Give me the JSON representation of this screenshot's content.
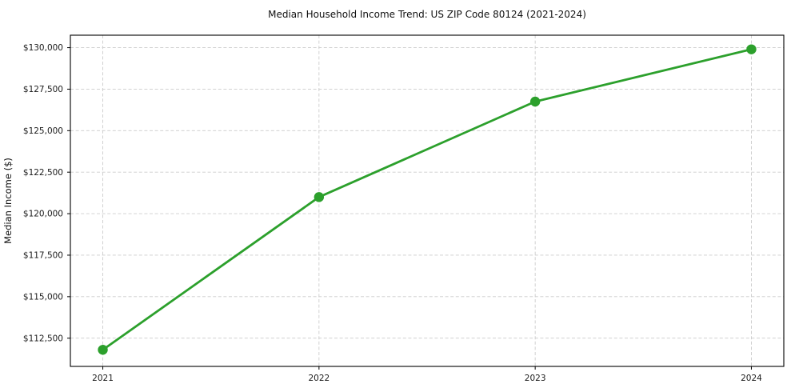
{
  "chart_data": {
    "type": "line",
    "title": "Median Household Income Trend: US ZIP Code 80124 (2021-2024)",
    "xlabel": "",
    "ylabel": "Median Income ($)",
    "x": [
      2021,
      2022,
      2023,
      2024
    ],
    "x_tick_labels": [
      "2021",
      "2022",
      "2023",
      "2024"
    ],
    "series": [
      {
        "name": "Median Household Income",
        "values": [
          111800,
          121000,
          126750,
          129900
        ]
      }
    ],
    "y_ticks": [
      112500,
      115000,
      117500,
      120000,
      122500,
      125000,
      127500,
      130000
    ],
    "y_tick_labels": [
      "$112,500",
      "$115,000",
      "$117,500",
      "$120,000",
      "$122,500",
      "$125,000",
      "$127,500",
      "$130,000"
    ],
    "ylim": [
      110800,
      130750
    ],
    "xlim": [
      2020.85,
      2024.15
    ],
    "grid": true,
    "grid_style": "dashed",
    "legend": "none",
    "colors": {
      "line": "#2ca02c",
      "marker": "#2ca02c",
      "grid": "#cccccc",
      "spine": "#000000",
      "background": "#ffffff",
      "text": "#1a1a1a"
    }
  }
}
